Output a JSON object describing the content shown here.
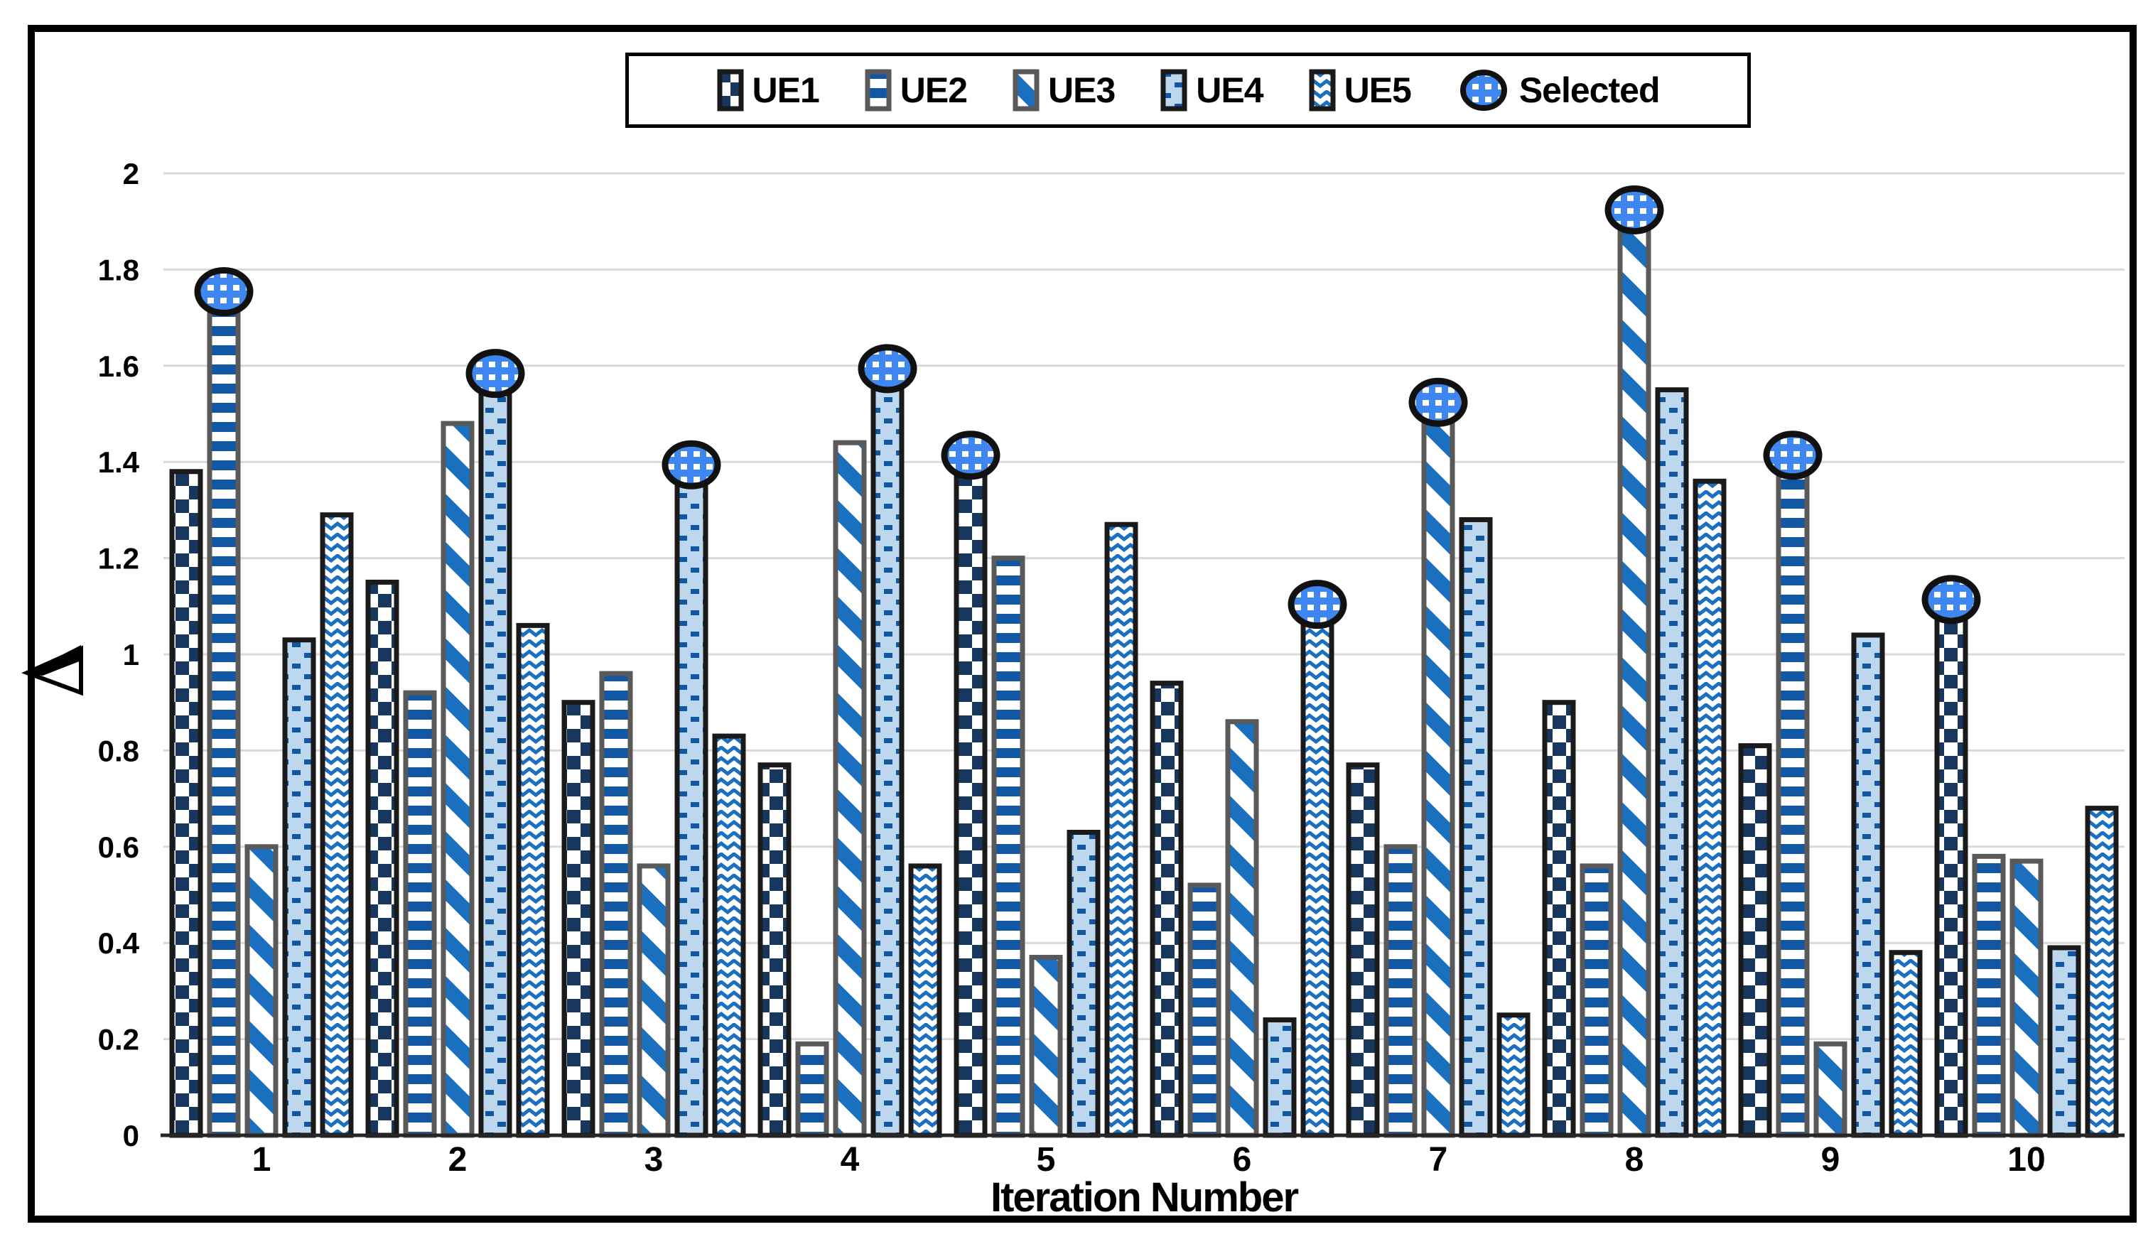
{
  "legend": {
    "items": [
      {
        "label": "UE1",
        "pattern": "checker"
      },
      {
        "label": "UE2",
        "pattern": "h-stripes"
      },
      {
        "label": "UE3",
        "pattern": "diagonal-stripes"
      },
      {
        "label": "UE4",
        "pattern": "dashes-on-light-blue"
      },
      {
        "label": "UE5",
        "pattern": "wave-crosshatch"
      },
      {
        "label": "Selected",
        "pattern": "dotted-circle-marker"
      }
    ]
  },
  "axes": {
    "x_title": "Iteration Number",
    "y_axis_symbol": "left-pointing-triangle-delta",
    "y_ticks": [
      "0",
      "0.2",
      "0.4",
      "0.6",
      "0.8",
      "1",
      "1.2",
      "1.4",
      "1.6",
      "1.8",
      "2"
    ]
  },
  "chart_data": {
    "type": "bar",
    "title": "",
    "xlabel": "Iteration Number",
    "ylabel": "delta (left-pointing triangle symbol)",
    "ylim": [
      0,
      2
    ],
    "ytick_step": 0.2,
    "grid": true,
    "legend_position": "top-center",
    "categories": [
      "1",
      "2",
      "3",
      "4",
      "5",
      "6",
      "7",
      "8",
      "9",
      "10"
    ],
    "series": [
      {
        "name": "UE1",
        "pattern": "checker",
        "border": "dark",
        "values": [
          1.38,
          1.15,
          0.9,
          0.77,
          1.38,
          0.94,
          0.77,
          0.9,
          0.81,
          1.08
        ]
      },
      {
        "name": "UE2",
        "pattern": "h-stripes",
        "border": "gray",
        "values": [
          1.72,
          0.92,
          0.96,
          0.19,
          1.2,
          0.52,
          0.6,
          0.56,
          1.38,
          0.58
        ]
      },
      {
        "name": "UE3",
        "pattern": "diagonal-stripes",
        "border": "gray",
        "values": [
          0.6,
          1.48,
          0.56,
          1.44,
          0.37,
          0.86,
          1.49,
          1.89,
          0.19,
          0.57
        ]
      },
      {
        "name": "UE4",
        "pattern": "dashes",
        "border": "dark",
        "values": [
          1.03,
          1.55,
          1.36,
          1.56,
          0.63,
          0.24,
          1.28,
          1.55,
          1.04,
          0.39
        ]
      },
      {
        "name": "UE5",
        "pattern": "wave",
        "border": "dark",
        "values": [
          1.29,
          1.06,
          0.83,
          0.56,
          1.27,
          1.07,
          0.25,
          1.36,
          0.38,
          0.68
        ]
      }
    ],
    "selected_markers": {
      "name": "Selected",
      "series_index_per_group": [
        1,
        3,
        3,
        3,
        0,
        4,
        2,
        2,
        1,
        0
      ],
      "values": [
        1.72,
        1.55,
        1.36,
        1.56,
        1.38,
        1.07,
        1.49,
        1.89,
        1.38,
        1.08
      ]
    },
    "colors": {
      "navy": "#17375E",
      "stripe_blue": "#1257A3",
      "bright_blue": "#1A6FC0",
      "light_blue": "#BDD7EE",
      "marker_blue": "#3F87F0",
      "border_dark": "#1A1A1A",
      "border_gray": "#595959",
      "marker_outline": "#111111",
      "gridline": "#D9D9D9",
      "axis_line": "#262626",
      "figure_border": "#000000"
    }
  }
}
